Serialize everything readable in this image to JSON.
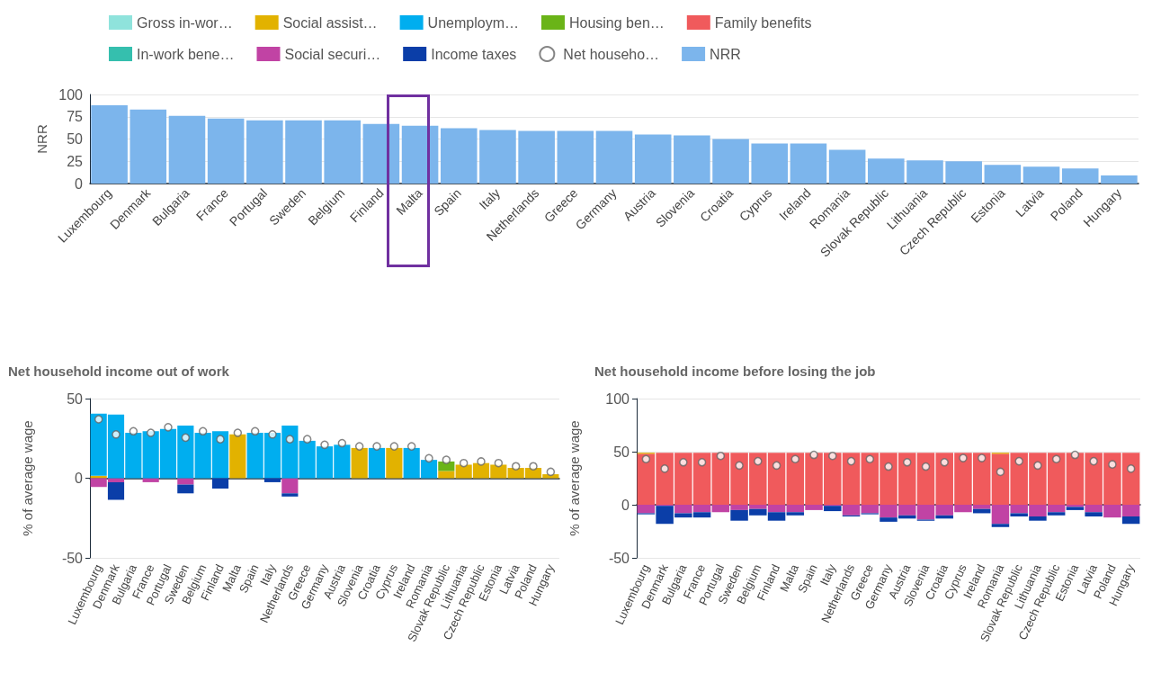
{
  "chart_data": [
    {
      "type": "bar",
      "ylabel": "NRR",
      "legend": "top",
      "grid": "y",
      "categories": [
        "Luxembourg",
        "Denmark",
        "Bulgaria",
        "France",
        "Portugal",
        "Sweden",
        "Belgium",
        "Finland",
        "Malta",
        "Spain",
        "Italy",
        "Netherlands",
        "Greece",
        "Germany",
        "Austria",
        "Slovenia",
        "Croatia",
        "Cyprus",
        "Ireland",
        "Romania",
        "Slovak Republic",
        "Lithuania",
        "Czech Republic",
        "Estonia",
        "Latvia",
        "Poland",
        "Hungary"
      ],
      "series": [
        {
          "name": "NRR",
          "color": "#7cb5ec",
          "values": [
            88,
            83,
            76,
            73,
            71,
            71,
            71,
            67,
            65,
            62,
            60,
            59,
            59,
            59,
            55,
            54,
            50,
            45,
            45,
            38,
            28,
            26,
            25,
            21,
            19,
            17,
            9
          ]
        }
      ],
      "ylim": [
        0,
        100
      ],
      "yticks": [
        0,
        25,
        50,
        75,
        100
      ]
    },
    {
      "type": "bar",
      "title": "Net household income out of work",
      "ylabel": "% of average wage",
      "legend": "top",
      "grid": "y",
      "stacked": true,
      "marker": "circle",
      "categories": [
        "Luxembourg",
        "Denmark",
        "Bulgaria",
        "France",
        "Portugal",
        "Sweden",
        "Belgium",
        "Finland",
        "Malta",
        "Spain",
        "Italy",
        "Netherlands",
        "Greece",
        "Germany",
        "Austria",
        "Slovenia",
        "Croatia",
        "Cyprus",
        "Ireland",
        "Romania",
        "Slovak Republic",
        "Lithuania",
        "Czech Republic",
        "Estonia",
        "Latvia",
        "Poland",
        "Hungary"
      ],
      "series": [
        {
          "name": "Gross in-wor…",
          "color": "#8fe3dc",
          "values": [
            0,
            0,
            0,
            0,
            0,
            0,
            0,
            0,
            0,
            0,
            0,
            0,
            0,
            0,
            0,
            0,
            0,
            0,
            0,
            0,
            0,
            0,
            0,
            0,
            0,
            0,
            0
          ]
        },
        {
          "name": "In-work bene…",
          "color": "#35bfae",
          "values": [
            0,
            0,
            0,
            0,
            0,
            0,
            0,
            0,
            0,
            0,
            0,
            0,
            0,
            0,
            0,
            0,
            0,
            0,
            0,
            0,
            0,
            0,
            0,
            0,
            0,
            0,
            0
          ]
        },
        {
          "name": "Social assist…",
          "color": "#e2b200",
          "values": [
            1.5,
            0,
            0,
            0,
            0,
            0,
            0,
            0,
            27.5,
            0,
            0,
            0,
            0,
            0,
            0,
            19,
            0,
            19,
            0,
            0,
            4.5,
            8.5,
            9.5,
            8.5,
            6.5,
            6.5,
            2.5
          ]
        },
        {
          "name": "Social securi…",
          "color": "#c143a4",
          "values": [
            -5.5,
            -2.5,
            0,
            -2.5,
            0,
            -4,
            0,
            0,
            0,
            0,
            0,
            -9.5,
            0,
            0,
            0,
            0,
            0,
            0,
            0,
            0,
            0,
            0,
            0,
            0,
            0,
            0,
            0
          ]
        },
        {
          "name": "Unemploym…",
          "color": "#00aeef",
          "values": [
            39,
            40,
            28.5,
            29.5,
            31,
            33,
            28.5,
            29.5,
            0,
            28.5,
            28.5,
            33,
            23.5,
            20,
            21,
            0,
            19,
            0,
            19,
            11.5,
            0,
            0,
            0,
            0,
            0,
            0,
            0
          ]
        },
        {
          "name": "Income taxes",
          "color": "#0b3ea8",
          "values": [
            0,
            -11,
            0,
            0,
            0,
            -5.5,
            0,
            -6.5,
            0,
            0,
            -2.5,
            -2,
            0,
            0,
            0,
            0,
            0,
            0,
            0,
            0,
            0,
            0,
            0,
            0,
            0,
            0,
            0
          ]
        },
        {
          "name": "Housing ben…",
          "color": "#6ab418",
          "values": [
            0,
            0,
            0,
            0,
            0,
            0,
            0,
            0,
            0,
            0,
            0,
            0,
            0,
            0,
            0,
            0,
            0,
            0,
            0,
            0,
            6,
            0,
            0,
            0,
            0,
            0,
            0
          ]
        },
        {
          "name": "Net househo…",
          "color": "#ffffff",
          "type": "scatter",
          "values": [
            37,
            27.5,
            29.5,
            28.5,
            32,
            25.5,
            29.5,
            24.5,
            28.5,
            29.5,
            27.5,
            24.5,
            24.5,
            21,
            22,
            20,
            20,
            20,
            20,
            12.5,
            11.5,
            9.5,
            10.5,
            9.5,
            7.5,
            7.5,
            4
          ]
        }
      ],
      "ylim": [
        -50,
        50
      ],
      "yticks": [
        -50,
        0,
        50
      ]
    },
    {
      "type": "bar",
      "title": "Net household income before losing the job",
      "ylabel": "% of average wage",
      "legend": "top",
      "grid": "y",
      "stacked": true,
      "marker": "circle",
      "categories": [
        "Luxembourg",
        "Denmark",
        "Bulgaria",
        "France",
        "Portugal",
        "Sweden",
        "Belgium",
        "Finland",
        "Malta",
        "Spain",
        "Italy",
        "Netherlands",
        "Greece",
        "Germany",
        "Austria",
        "Slovenia",
        "Croatia",
        "Cyprus",
        "Ireland",
        "Romania",
        "Slovak Republic",
        "Lithuania",
        "Czech Republic",
        "Estonia",
        "Latvia",
        "Poland",
        "Hungary"
      ],
      "series": [
        {
          "name": "Family benefits",
          "color": "#f05a5c",
          "values": [
            48,
            49,
            49,
            49,
            49,
            49,
            49,
            49,
            49,
            49,
            49,
            49,
            49,
            49,
            49,
            49,
            49,
            49,
            49,
            48,
            49,
            49,
            49,
            49,
            49,
            49,
            49
          ]
        },
        {
          "name": "Social assist…",
          "color": "#e2b200",
          "values": [
            1,
            0,
            0,
            0,
            0,
            0,
            0,
            0,
            0,
            0,
            0,
            0,
            0,
            0,
            0,
            0,
            0,
            0,
            0,
            1,
            0,
            0,
            0,
            0,
            0,
            0,
            0
          ]
        },
        {
          "name": "Social securi…",
          "color": "#c143a4",
          "values": [
            -8,
            -1,
            -8,
            -7,
            -7,
            -5,
            -4,
            -7,
            -7,
            -5,
            -1,
            -10,
            -8,
            -12,
            -10,
            -14,
            -10,
            -7,
            -4,
            -18,
            -8,
            -11,
            -7,
            -2,
            -7,
            -12,
            -11
          ]
        },
        {
          "name": "Income taxes",
          "color": "#0b3ea8",
          "values": [
            -1,
            -17,
            -4,
            -5,
            0,
            -10,
            -6,
            -8,
            -3,
            0,
            -5,
            -1,
            -1,
            -4,
            -3,
            -1,
            -3,
            0,
            -4,
            -3,
            -3,
            -4,
            -3,
            -3,
            -4,
            0,
            -7
          ]
        },
        {
          "name": "Net househo…",
          "color": "#ffffff",
          "type": "scatter",
          "values": [
            43,
            34,
            40,
            40,
            46,
            37,
            41,
            37,
            43,
            47,
            46,
            41,
            43,
            36,
            40,
            36,
            40,
            44,
            44,
            31,
            41,
            37,
            43,
            47,
            41,
            38,
            34
          ]
        }
      ],
      "ylim": [
        -50,
        100
      ],
      "yticks": [
        -50,
        0,
        50,
        100
      ]
    }
  ]
}
